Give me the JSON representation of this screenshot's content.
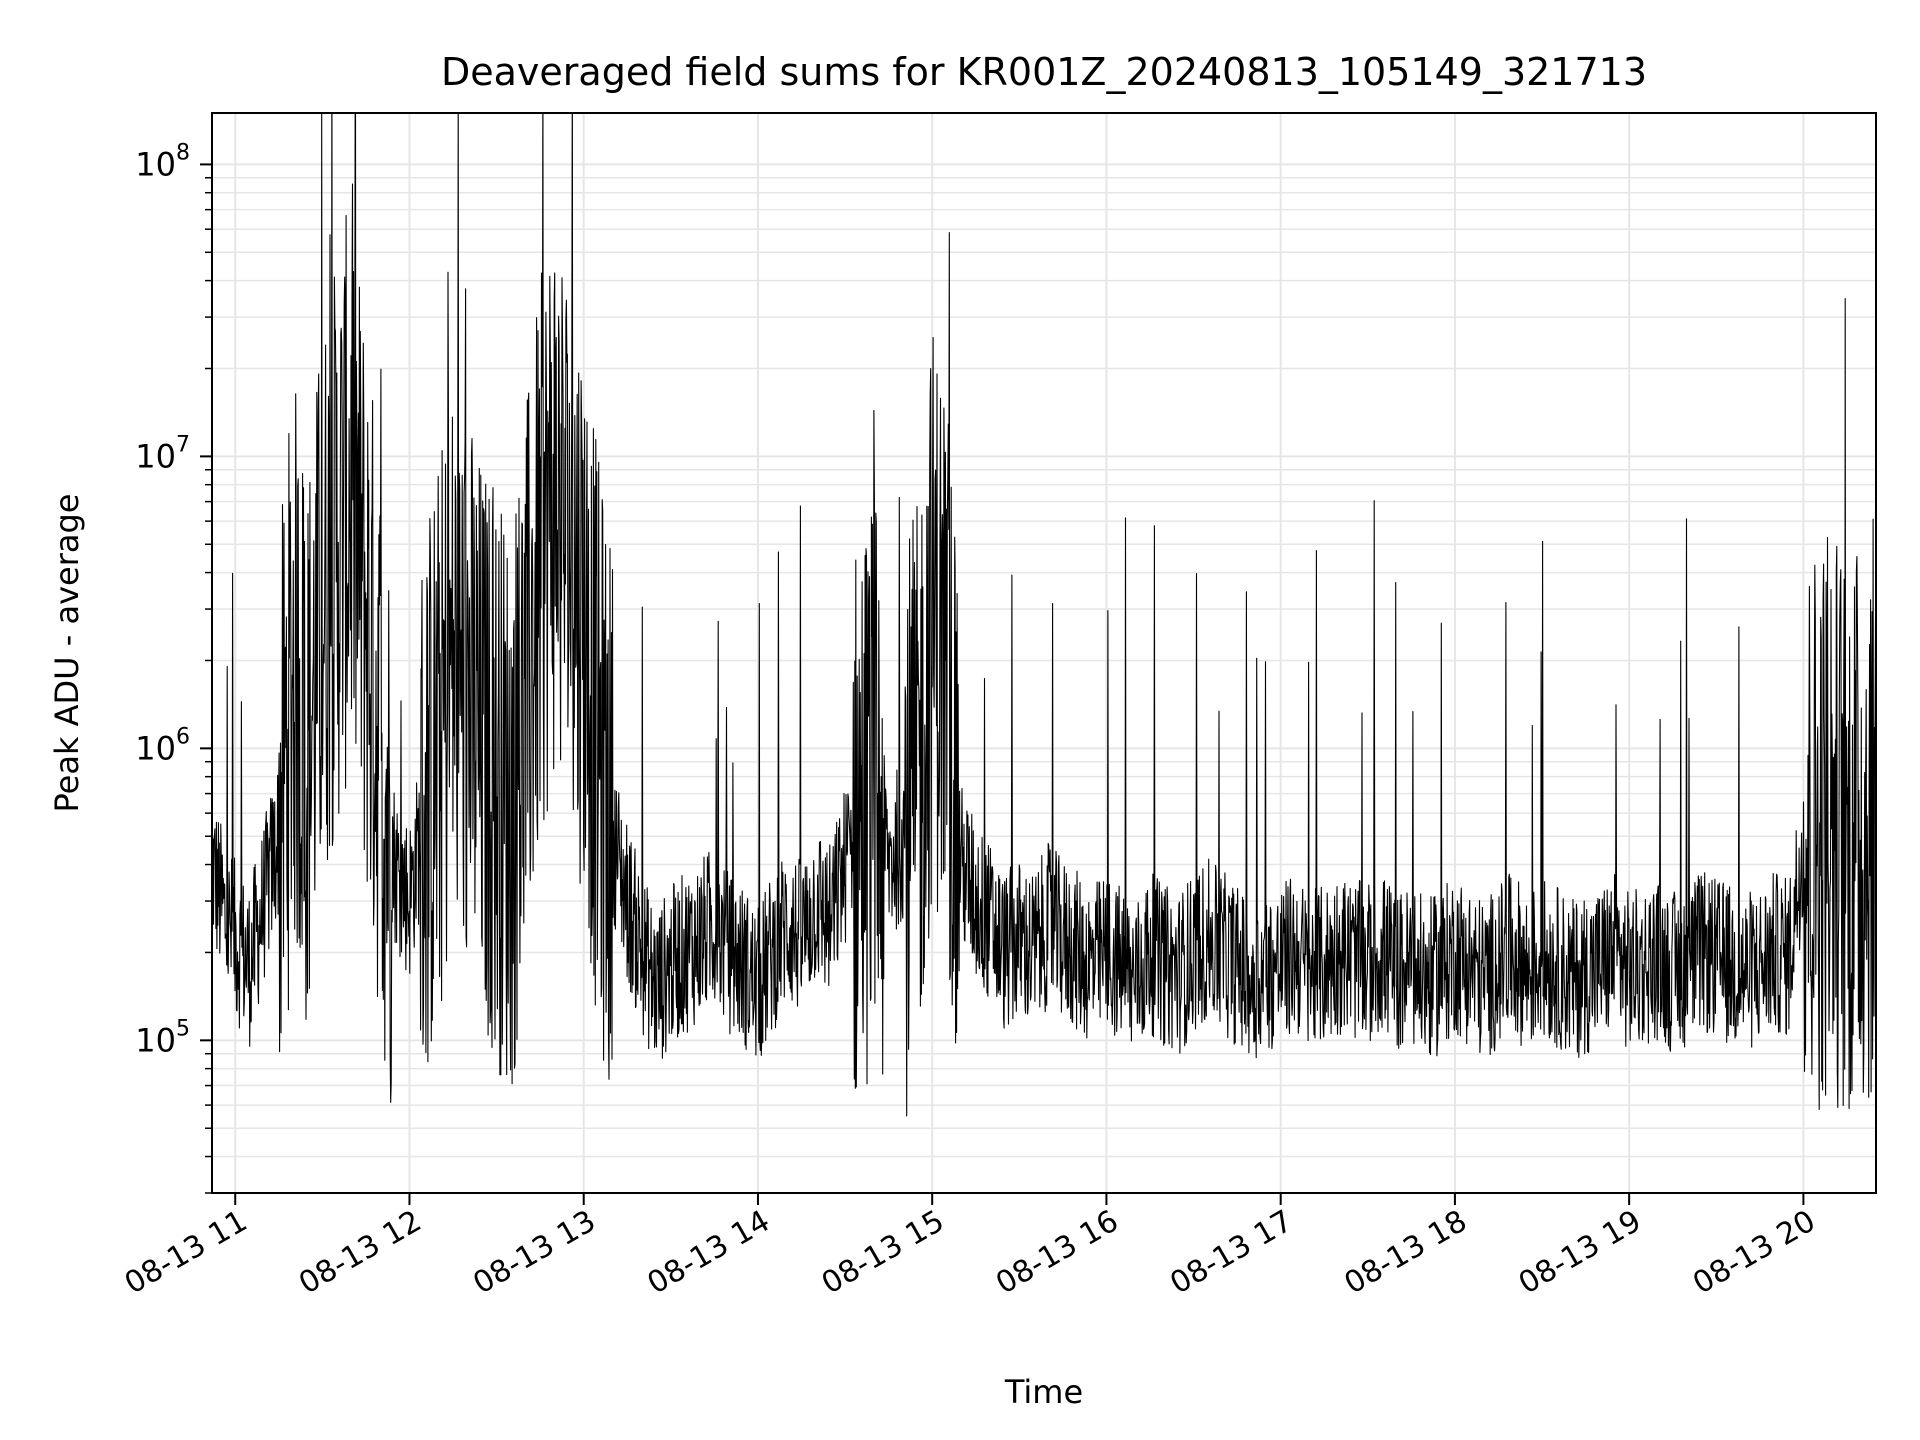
{
  "chart_data": {
    "type": "line",
    "title": "Deaveraged field sums for KR001Z_20240813_105149_321713",
    "xlabel": "Time",
    "ylabel": "Peak ADU - average",
    "yscale": "log",
    "xlim": [
      "2024-08-13 10:52",
      "2024-08-13 20:25"
    ],
    "ylim": [
      30000,
      150000000
    ],
    "grid": true,
    "grid_minor": true,
    "line_color": "#000000",
    "x_ticks": [
      {
        "time": "2024-08-13 11:00",
        "label": "08-13 11"
      },
      {
        "time": "2024-08-13 12:00",
        "label": "08-13 12"
      },
      {
        "time": "2024-08-13 13:00",
        "label": "08-13 13"
      },
      {
        "time": "2024-08-13 14:00",
        "label": "08-13 14"
      },
      {
        "time": "2024-08-13 15:00",
        "label": "08-13 15"
      },
      {
        "time": "2024-08-13 16:00",
        "label": "08-13 16"
      },
      {
        "time": "2024-08-13 17:00",
        "label": "08-13 17"
      },
      {
        "time": "2024-08-13 18:00",
        "label": "08-13 18"
      },
      {
        "time": "2024-08-13 19:00",
        "label": "08-13 19"
      },
      {
        "time": "2024-08-13 20:00",
        "label": "08-13 20"
      }
    ],
    "y_ticks": [
      {
        "value": 100000,
        "base": "10",
        "exp": "5"
      },
      {
        "value": 1000000,
        "base": "10",
        "exp": "6"
      },
      {
        "value": 10000000,
        "base": "10",
        "exp": "7"
      },
      {
        "value": 100000000,
        "base": "10",
        "exp": "8"
      }
    ],
    "series": [
      {
        "x": [
          "2024-08-13 10:52",
          "2024-08-13 10:55",
          "2024-08-13 10:57",
          "2024-08-13 11:00",
          "2024-08-13 11:05",
          "2024-08-13 11:10",
          "2024-08-13 11:15",
          "2024-08-13 11:20",
          "2024-08-13 11:25",
          "2024-08-13 11:30",
          "2024-08-13 11:35",
          "2024-08-13 11:40",
          "2024-08-13 11:45",
          "2024-08-13 11:50",
          "2024-08-13 11:55",
          "2024-08-13 12:00",
          "2024-08-13 12:05",
          "2024-08-13 12:10",
          "2024-08-13 12:15",
          "2024-08-13 12:20",
          "2024-08-13 12:25",
          "2024-08-13 12:30",
          "2024-08-13 12:35",
          "2024-08-13 12:40",
          "2024-08-13 12:45",
          "2024-08-13 12:50",
          "2024-08-13 12:55",
          "2024-08-13 13:00",
          "2024-08-13 13:05",
          "2024-08-13 13:10",
          "2024-08-13 13:15",
          "2024-08-13 13:20",
          "2024-08-13 13:25",
          "2024-08-13 13:30",
          "2024-08-13 13:35",
          "2024-08-13 13:40",
          "2024-08-13 13:45",
          "2024-08-13 13:50",
          "2024-08-13 13:55",
          "2024-08-13 14:00",
          "2024-08-13 14:05",
          "2024-08-13 14:10",
          "2024-08-13 14:15",
          "2024-08-13 14:20",
          "2024-08-13 14:25",
          "2024-08-13 14:30",
          "2024-08-13 14:35",
          "2024-08-13 14:40",
          "2024-08-13 14:45",
          "2024-08-13 14:50",
          "2024-08-13 14:55",
          "2024-08-13 15:00",
          "2024-08-13 15:05",
          "2024-08-13 15:10",
          "2024-08-13 15:15",
          "2024-08-13 15:20",
          "2024-08-13 15:25",
          "2024-08-13 15:30",
          "2024-08-13 15:35",
          "2024-08-13 15:40",
          "2024-08-13 15:45",
          "2024-08-13 15:50",
          "2024-08-13 15:55",
          "2024-08-13 16:00",
          "2024-08-13 16:05",
          "2024-08-13 16:10",
          "2024-08-13 16:15",
          "2024-08-13 16:20",
          "2024-08-13 16:25",
          "2024-08-13 16:30",
          "2024-08-13 16:35",
          "2024-08-13 16:40",
          "2024-08-13 16:45",
          "2024-08-13 16:50",
          "2024-08-13 16:55",
          "2024-08-13 17:00",
          "2024-08-13 17:05",
          "2024-08-13 17:10",
          "2024-08-13 17:15",
          "2024-08-13 17:20",
          "2024-08-13 17:25",
          "2024-08-13 17:30",
          "2024-08-13 17:35",
          "2024-08-13 17:40",
          "2024-08-13 17:45",
          "2024-08-13 17:50",
          "2024-08-13 17:55",
          "2024-08-13 18:00",
          "2024-08-13 18:05",
          "2024-08-13 18:10",
          "2024-08-13 18:15",
          "2024-08-13 18:20",
          "2024-08-13 18:25",
          "2024-08-13 18:30",
          "2024-08-13 18:35",
          "2024-08-13 18:40",
          "2024-08-13 18:45",
          "2024-08-13 18:50",
          "2024-08-13 18:55",
          "2024-08-13 19:00",
          "2024-08-13 19:05",
          "2024-08-13 19:10",
          "2024-08-13 19:15",
          "2024-08-13 19:20",
          "2024-08-13 19:25",
          "2024-08-13 19:30",
          "2024-08-13 19:35",
          "2024-08-13 19:40",
          "2024-08-13 19:45",
          "2024-08-13 19:50",
          "2024-08-13 19:55",
          "2024-08-13 20:00",
          "2024-08-13 20:05",
          "2024-08-13 20:10",
          "2024-08-13 20:15",
          "2024-08-13 20:20",
          "2024-08-13 20:25"
        ],
        "y": [
          400000,
          300000,
          250000,
          220000,
          180000,
          300000,
          500000,
          2000000,
          1000000,
          3000000,
          5000000,
          8000000,
          3000000,
          1000000,
          400000,
          300000,
          600000,
          1000000,
          2000000,
          1500000,
          1000000,
          800000,
          600000,
          1500000,
          4000000,
          8000000,
          5000000,
          3000000,
          1000000,
          500000,
          300000,
          200000,
          150000,
          180000,
          200000,
          220000,
          250000,
          200000,
          180000,
          150000,
          200000,
          250000,
          220000,
          300000,
          250000,
          400000,
          600000,
          800000,
          400000,
          500000,
          700000,
          3000000,
          2000000,
          400000,
          300000,
          250000,
          200000,
          220000,
          200000,
          250000,
          220000,
          200000,
          180000,
          200000,
          180000,
          160000,
          200000,
          180000,
          170000,
          200000,
          220000,
          200000,
          180000,
          160000,
          170000,
          180000,
          200000,
          170000,
          180000,
          200000,
          190000,
          180000,
          200000,
          170000,
          180000,
          160000,
          170000,
          200000,
          180000,
          160000,
          180000,
          200000,
          170000,
          190000,
          180000,
          160000,
          170000,
          180000,
          200000,
          170000,
          180000,
          190000,
          170000,
          180000,
          200000,
          190000,
          180000,
          170000,
          180000,
          200000,
          190000,
          500000,
          550000,
          600000,
          500000,
          520000,
          650000
        ]
      }
    ]
  }
}
